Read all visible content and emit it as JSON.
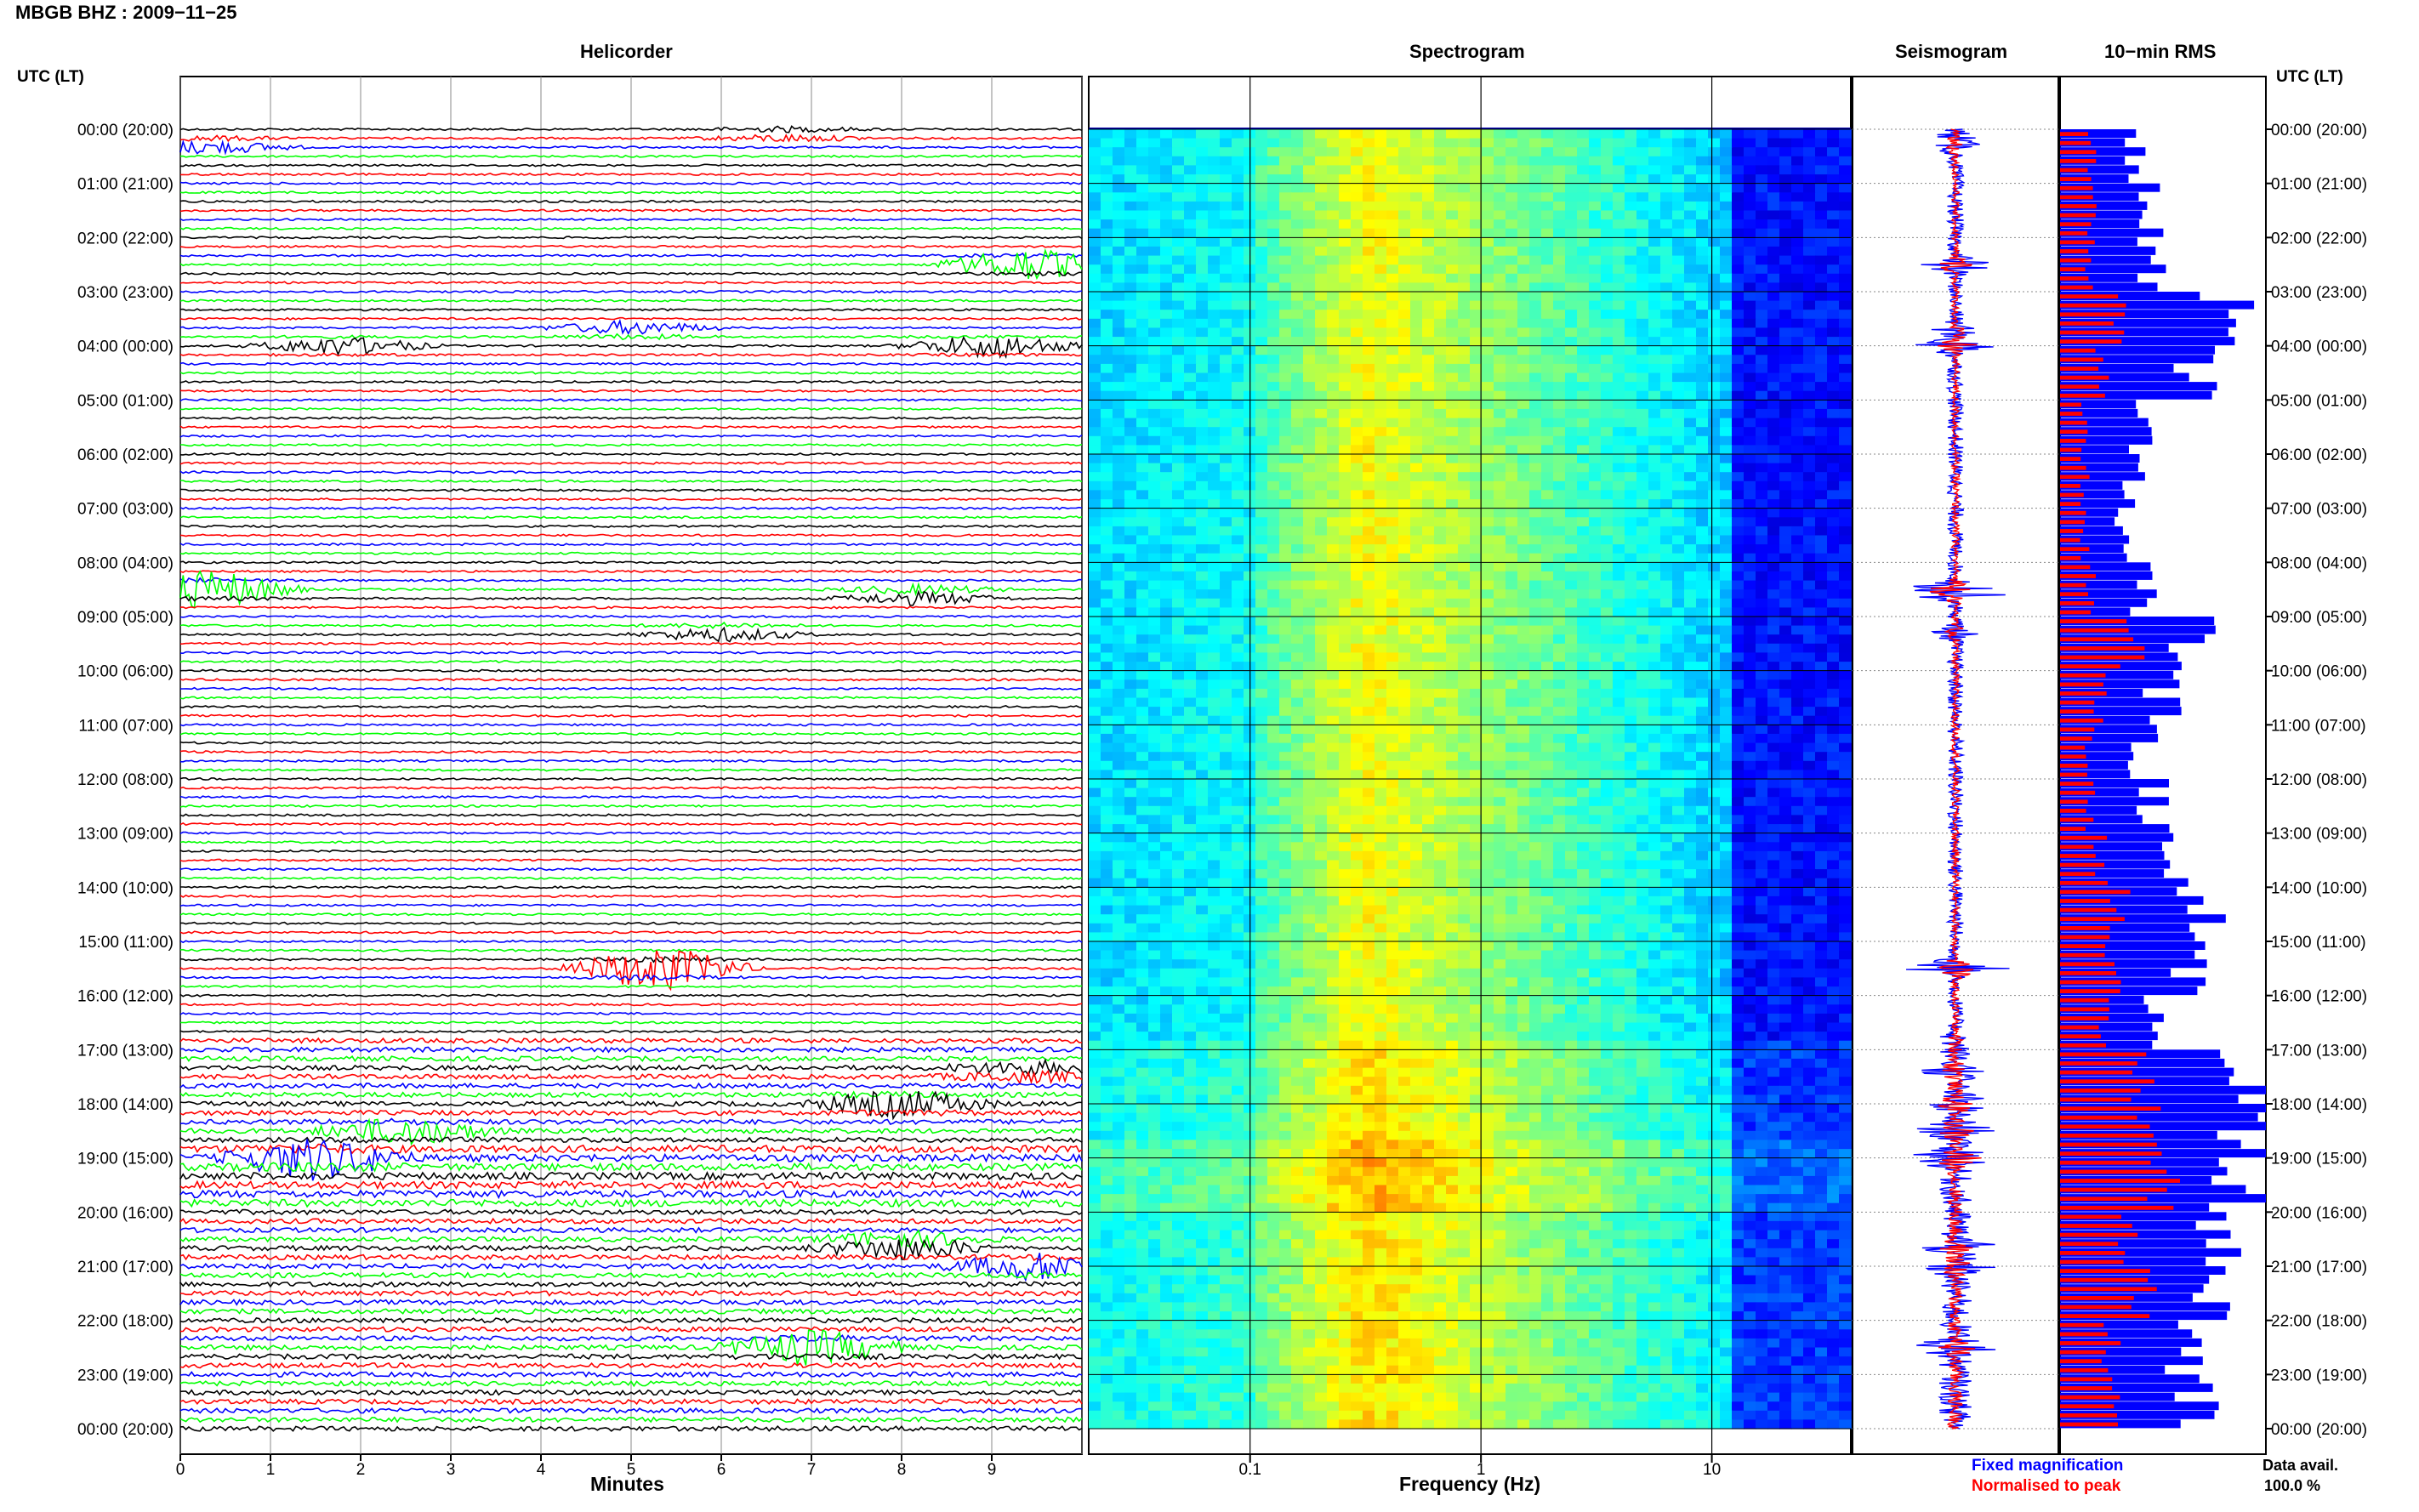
{
  "header": {
    "station_date": "MBGB BHZ : 2009−11−25",
    "time_axis_label": "UTC (LT)"
  },
  "panels": {
    "helicorder": "Helicorder",
    "spectrogram": "Spectrogram",
    "seismogram": "Seismogram",
    "rms": "10−min RMS"
  },
  "footer": {
    "minutes_label": "Minutes",
    "frequency_label": "Frequency (Hz)",
    "legend_fixed": "Fixed magnification",
    "legend_normalised": "Normalised to peak",
    "data_avail_label": "Data avail.",
    "data_avail_value": "100.0 %"
  },
  "colors": {
    "fixed": "#0000ff",
    "normalised": "#ff0000",
    "trace_cycle": [
      "#000000",
      "#ff0000",
      "#0000ff",
      "#00ff00"
    ]
  },
  "chart_data": [
    {
      "type": "line",
      "name": "helicorder",
      "title": "Helicorder",
      "xlabel": "Minutes",
      "x_ticks": [
        0,
        1,
        2,
        3,
        4,
        5,
        6,
        7,
        8,
        9
      ],
      "xlim": [
        0,
        10
      ],
      "lines_per_hour": 6,
      "hour_ticks_utc": [
        "00:00 (20:00)",
        "01:00 (21:00)",
        "02:00 (22:00)",
        "03:00 (23:00)",
        "04:00 (00:00)",
        "05:00 (01:00)",
        "06:00 (02:00)",
        "07:00 (03:00)",
        "08:00 (04:00)",
        "09:00 (05:00)",
        "10:00 (06:00)",
        "11:00 (07:00)",
        "12:00 (08:00)",
        "13:00 (09:00)",
        "14:00 (10:00)",
        "15:00 (11:00)",
        "16:00 (12:00)",
        "17:00 (13:00)",
        "18:00 (14:00)",
        "19:00 (15:00)",
        "20:00 (16:00)",
        "21:00 (17:00)",
        "22:00 (18:00)",
        "23:00 (19:00)",
        "00:00 (20:00)"
      ],
      "events": [
        {
          "hour": 0.1,
          "minute": 6.7,
          "amp": 0.8
        },
        {
          "hour": 0.3,
          "minute": 0.3,
          "amp": 1.2
        },
        {
          "hour": 2.5,
          "minute": 9.4,
          "amp": 2.5
        },
        {
          "hour": 3.7,
          "minute": 5.0,
          "amp": 1.2
        },
        {
          "hour": 4.0,
          "minute": 1.8,
          "amp": 1.4
        },
        {
          "hour": 4.0,
          "minute": 9.0,
          "amp": 1.8
        },
        {
          "hour": 8.5,
          "minute": 0.3,
          "amp": 3.0
        },
        {
          "hour": 8.6,
          "minute": 8.2,
          "amp": 1.5
        },
        {
          "hour": 9.3,
          "minute": 6.0,
          "amp": 1.2
        },
        {
          "hour": 15.5,
          "minute": 5.3,
          "amp": 3.5
        },
        {
          "hour": 17.4,
          "minute": 9.4,
          "amp": 1.5
        },
        {
          "hour": 18.0,
          "minute": 8.0,
          "amp": 2.0
        },
        {
          "hour": 18.5,
          "minute": 2.5,
          "amp": 2.0
        },
        {
          "hour": 19.0,
          "minute": 1.5,
          "amp": 3.0
        },
        {
          "hour": 20.6,
          "minute": 8.0,
          "amp": 2.5
        },
        {
          "hour": 21.0,
          "minute": 9.5,
          "amp": 2.0
        },
        {
          "hour": 22.5,
          "minute": 7.0,
          "amp": 2.5
        }
      ]
    },
    {
      "type": "heatmap",
      "name": "spectrogram",
      "title": "Spectrogram",
      "xlabel": "Frequency (Hz)",
      "xscale": "log",
      "xlim": [
        0.02,
        40
      ],
      "x_tick_labels": [
        "0.1",
        "1",
        "10"
      ],
      "y": "hours UTC 0-24",
      "peak_band_hz": [
        0.2,
        0.5
      ],
      "colormap": "jet"
    },
    {
      "type": "line",
      "name": "seismogram",
      "title": "Seismogram",
      "series": [
        "Fixed magnification",
        "Normalised to peak"
      ],
      "y": "hours UTC 0-24"
    },
    {
      "type": "bar",
      "name": "rms",
      "title": "10−min RMS",
      "orientation": "horizontal",
      "categories_hours": [
        0,
        1,
        2,
        3,
        4,
        5,
        6,
        7,
        8,
        9,
        10,
        11,
        12,
        13,
        14,
        15,
        16,
        17,
        18,
        19,
        20,
        21,
        22,
        23
      ],
      "series": [
        {
          "name": "Fixed magnification",
          "values": [
            0.35,
            0.45,
            0.45,
            0.8,
            0.65,
            0.4,
            0.35,
            0.3,
            0.4,
            0.65,
            0.5,
            0.4,
            0.45,
            0.55,
            0.7,
            0.6,
            0.5,
            0.9,
            0.95,
            0.9,
            0.75,
            0.8,
            0.6,
            0.65
          ]
        },
        {
          "name": "Normalised to peak",
          "values": [
            0.15,
            0.15,
            0.15,
            0.3,
            0.2,
            0.12,
            0.12,
            0.12,
            0.15,
            0.35,
            0.2,
            0.15,
            0.15,
            0.2,
            0.3,
            0.25,
            0.2,
            0.4,
            0.45,
            0.5,
            0.35,
            0.4,
            0.25,
            0.3
          ]
        }
      ],
      "xlim": [
        0,
        1
      ]
    }
  ]
}
